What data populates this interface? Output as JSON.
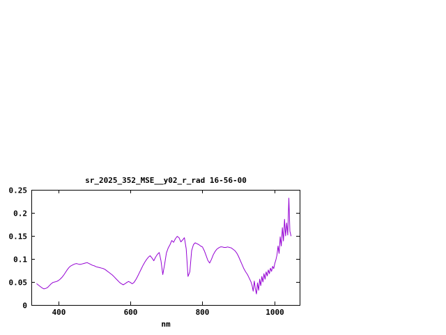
{
  "chart_data": {
    "type": "line",
    "title": "sr_2025_352_MSE__y02_r_rad 16-56-00",
    "xlabel": "nm",
    "ylabel": "",
    "xlim": [
      325,
      1070
    ],
    "ylim": [
      0,
      0.25
    ],
    "x_ticks": [
      400,
      600,
      800,
      1000
    ],
    "x_tick_labels": [
      "400",
      "600",
      "800",
      "1000"
    ],
    "y_ticks": [
      0,
      0.05,
      0.1,
      0.15,
      0.2,
      0.25
    ],
    "y_tick_labels": [
      "0",
      "0.05",
      "0.1",
      "0.15",
      "0.2",
      "0.25"
    ],
    "grid": false,
    "legend": "none",
    "line_color": "#9400d3",
    "axis_color": "#000000",
    "background_color": "#ffffff",
    "series": [
      {
        "name": "sr_2025_352_MSE__y02_r_rad 16-56-00",
        "x": [
          340,
          345,
          350,
          355,
          360,
          365,
          370,
          375,
          380,
          385,
          390,
          395,
          400,
          405,
          410,
          415,
          420,
          425,
          430,
          435,
          440,
          445,
          450,
          455,
          460,
          465,
          470,
          475,
          480,
          485,
          490,
          495,
          500,
          505,
          510,
          515,
          520,
          525,
          530,
          535,
          540,
          545,
          550,
          555,
          560,
          565,
          570,
          575,
          580,
          585,
          590,
          595,
          600,
          605,
          610,
          615,
          620,
          625,
          630,
          635,
          640,
          645,
          650,
          655,
          660,
          665,
          670,
          675,
          680,
          685,
          690,
          695,
          700,
          705,
          710,
          715,
          720,
          725,
          730,
          735,
          740,
          745,
          750,
          755,
          760,
          765,
          770,
          775,
          780,
          785,
          790,
          795,
          800,
          805,
          810,
          815,
          820,
          825,
          830,
          835,
          840,
          845,
          850,
          855,
          860,
          865,
          870,
          875,
          880,
          885,
          890,
          895,
          900,
          905,
          910,
          915,
          920,
          925,
          930,
          935,
          938,
          941,
          944,
          947,
          950,
          953,
          956,
          959,
          962,
          965,
          968,
          971,
          974,
          977,
          980,
          983,
          986,
          989,
          992,
          995,
          998,
          1001,
          1004,
          1007,
          1010,
          1013,
          1016,
          1019,
          1022,
          1025,
          1028,
          1031,
          1034,
          1037,
          1040,
          1043,
          1046
        ],
        "y": [
          0.046,
          0.043,
          0.04,
          0.037,
          0.035,
          0.036,
          0.038,
          0.042,
          0.046,
          0.049,
          0.05,
          0.051,
          0.053,
          0.056,
          0.06,
          0.065,
          0.071,
          0.077,
          0.082,
          0.085,
          0.087,
          0.089,
          0.09,
          0.089,
          0.088,
          0.089,
          0.09,
          0.091,
          0.092,
          0.09,
          0.088,
          0.086,
          0.085,
          0.083,
          0.082,
          0.081,
          0.08,
          0.079,
          0.077,
          0.074,
          0.071,
          0.068,
          0.065,
          0.061,
          0.057,
          0.053,
          0.049,
          0.046,
          0.044,
          0.046,
          0.049,
          0.051,
          0.049,
          0.046,
          0.049,
          0.055,
          0.062,
          0.07,
          0.078,
          0.086,
          0.093,
          0.099,
          0.104,
          0.107,
          0.102,
          0.096,
          0.104,
          0.11,
          0.114,
          0.096,
          0.066,
          0.088,
          0.113,
          0.124,
          0.131,
          0.14,
          0.136,
          0.144,
          0.149,
          0.146,
          0.137,
          0.141,
          0.146,
          0.122,
          0.062,
          0.072,
          0.118,
          0.131,
          0.135,
          0.133,
          0.131,
          0.128,
          0.126,
          0.118,
          0.108,
          0.097,
          0.091,
          0.099,
          0.109,
          0.116,
          0.121,
          0.124,
          0.126,
          0.126,
          0.125,
          0.125,
          0.126,
          0.125,
          0.124,
          0.121,
          0.118,
          0.113,
          0.106,
          0.097,
          0.088,
          0.079,
          0.072,
          0.066,
          0.058,
          0.05,
          0.042,
          0.03,
          0.052,
          0.035,
          0.024,
          0.048,
          0.032,
          0.056,
          0.042,
          0.062,
          0.05,
          0.068,
          0.056,
          0.072,
          0.063,
          0.076,
          0.068,
          0.08,
          0.073,
          0.084,
          0.079,
          0.09,
          0.098,
          0.108,
          0.128,
          0.112,
          0.148,
          0.128,
          0.168,
          0.139,
          0.186,
          0.15,
          0.178,
          0.152,
          0.232,
          0.16,
          0.15
        ]
      }
    ]
  }
}
